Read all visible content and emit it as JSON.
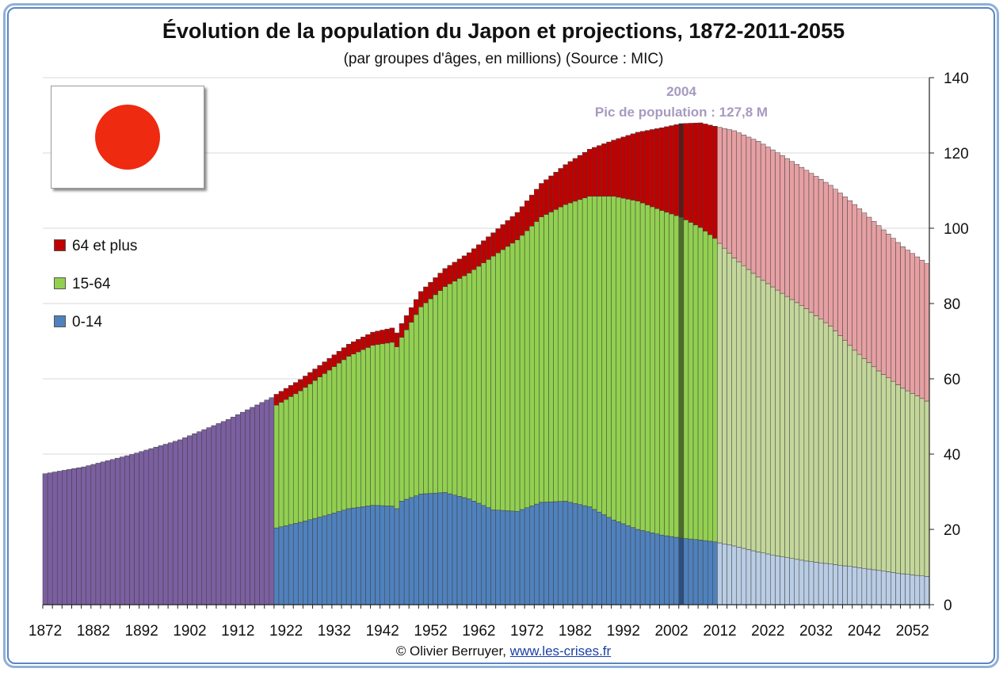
{
  "title": "Évolution de la population du Japon et projections, 1872-2011-2055",
  "subtitle": "(par groupes d'âges, en millions) (Source : MIC)",
  "footer": {
    "credit": "© Olivier Berruyer,",
    "link": "www.les-crises.fr"
  },
  "annotation": {
    "year": "2004",
    "text": "Pic de population  :  127,8 M"
  },
  "legend": [
    {
      "label": "64 et plus",
      "color": "#c00000"
    },
    {
      "label": "15-64",
      "color": "#92d050"
    },
    {
      "label": "0-14",
      "color": "#4f81bd"
    }
  ],
  "chart_data": {
    "type": "bar",
    "stacked": true,
    "title": "Évolution de la population du Japon et projections, 1872-2011-2055",
    "ylim": [
      0,
      140
    ],
    "yticks": [
      0,
      20,
      40,
      60,
      80,
      100,
      120,
      140
    ],
    "y_axis_side": "right",
    "xticks": [
      1872,
      1882,
      1892,
      1902,
      1912,
      1922,
      1932,
      1942,
      1952,
      1962,
      1972,
      1982,
      1992,
      2002,
      2012,
      2022,
      2032,
      2042,
      2052
    ],
    "x_range": [
      1872,
      2055
    ],
    "highlight_year": 2004,
    "projection_start": 2012,
    "colors": {
      "total": "#7b5fa0",
      "young": "#4f81bd",
      "working": "#92d050",
      "old": "#c00000",
      "young_proj": "#b9cde5",
      "working_proj": "#c4d79b",
      "old_proj": "#e6a0a3",
      "highlight": "#3d3d5c"
    },
    "total_only_keypoints": {
      "x": [
        1872,
        1880,
        1890,
        1900,
        1910,
        1919
      ],
      "total": [
        34.8,
        36.6,
        39.9,
        43.8,
        49.2,
        55.0
      ]
    },
    "keypoints": {
      "x": [
        1920,
        1925,
        1930,
        1935,
        1940,
        1944,
        1945,
        1946,
        1947,
        1950,
        1955,
        1960,
        1965,
        1970,
        1975,
        1980,
        1985,
        1990,
        1995,
        2000,
        2004,
        2008,
        2011,
        2015,
        2020,
        2025,
        2030,
        2035,
        2040,
        2045,
        2050,
        2055
      ],
      "young": [
        20.4,
        21.9,
        23.6,
        25.5,
        26.4,
        26.2,
        25.5,
        27.5,
        28.0,
        29.4,
        29.8,
        28.1,
        25.2,
        24.8,
        27.2,
        27.5,
        26.0,
        22.5,
        20.0,
        18.5,
        17.7,
        17.2,
        16.7,
        15.6,
        14.0,
        12.7,
        11.6,
        10.8,
        10.0,
        9.1,
        8.2,
        7.5
      ],
      "working": [
        32.6,
        34.9,
        37.8,
        40.5,
        42.5,
        43.5,
        43.0,
        43.5,
        45.0,
        49.7,
        54.7,
        60.0,
        67.4,
        72.1,
        75.8,
        78.8,
        82.5,
        86.0,
        87.2,
        86.2,
        85.2,
        83.0,
        80.6,
        76.5,
        73.0,
        70.0,
        67.0,
        63.2,
        57.6,
        53.0,
        49.3,
        46.6
      ],
      "old": [
        2.9,
        3.0,
        3.1,
        3.2,
        3.5,
        3.8,
        3.7,
        3.7,
        3.8,
        4.1,
        4.8,
        5.4,
        6.2,
        7.3,
        8.9,
        10.6,
        12.5,
        14.9,
        18.3,
        22.0,
        24.9,
        27.8,
        29.8,
        33.8,
        36.1,
        36.6,
        36.8,
        37.4,
        38.7,
        38.6,
        37.6,
        36.5
      ]
    }
  }
}
